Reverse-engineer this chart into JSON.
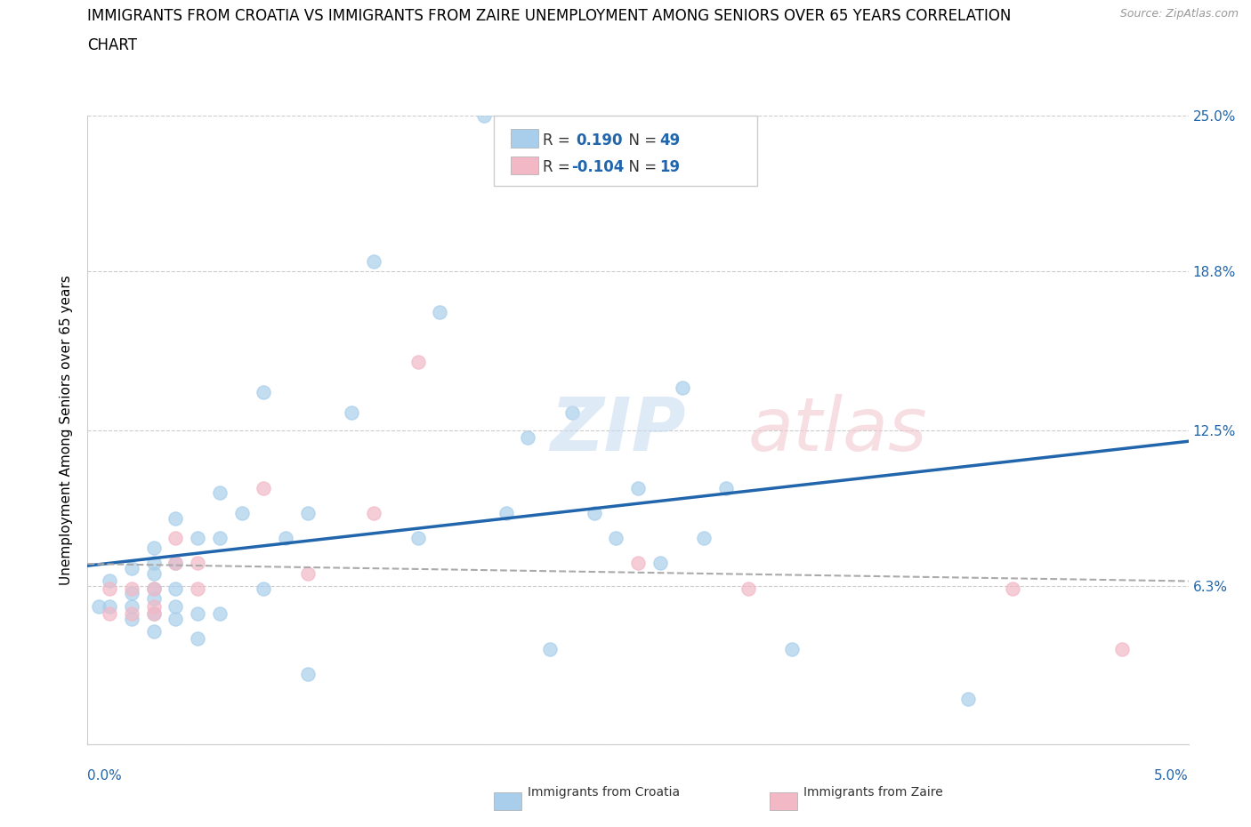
{
  "title_line1": "IMMIGRANTS FROM CROATIA VS IMMIGRANTS FROM ZAIRE UNEMPLOYMENT AMONG SENIORS OVER 65 YEARS CORRELATION",
  "title_line2": "CHART",
  "source": "Source: ZipAtlas.com",
  "ylabel": "Unemployment Among Seniors over 65 years",
  "xlim": [
    0.0,
    0.05
  ],
  "ylim": [
    0.0,
    0.25
  ],
  "xticks": [
    0.0,
    0.01,
    0.02,
    0.03,
    0.04,
    0.05
  ],
  "xticklabels": [
    "0.0%",
    "",
    "",
    "",
    "",
    "5.0%"
  ],
  "yticks": [
    0.0,
    0.063,
    0.125,
    0.188,
    0.25
  ],
  "yticklabels": [
    "",
    "6.3%",
    "12.5%",
    "18.8%",
    "25.0%"
  ],
  "croatia_color": "#A8CEEB",
  "zaire_color": "#F2B8C6",
  "croatia_line_color": "#2166AC",
  "zaire_line_color": "#F08098",
  "background_color": "#FFFFFF",
  "grid_color": "#CCCCCC",
  "r_croatia": 0.19,
  "n_croatia": 49,
  "r_zaire": -0.104,
  "n_zaire": 19,
  "croatia_x": [
    0.0005,
    0.001,
    0.001,
    0.002,
    0.002,
    0.002,
    0.002,
    0.003,
    0.003,
    0.003,
    0.003,
    0.003,
    0.003,
    0.003,
    0.004,
    0.004,
    0.004,
    0.004,
    0.004,
    0.005,
    0.005,
    0.005,
    0.006,
    0.006,
    0.006,
    0.007,
    0.008,
    0.008,
    0.009,
    0.01,
    0.01,
    0.012,
    0.013,
    0.015,
    0.016,
    0.018,
    0.019,
    0.02,
    0.021,
    0.022,
    0.023,
    0.024,
    0.025,
    0.026,
    0.027,
    0.028,
    0.029,
    0.032,
    0.04
  ],
  "croatia_y": [
    0.055,
    0.055,
    0.065,
    0.05,
    0.055,
    0.06,
    0.07,
    0.045,
    0.052,
    0.058,
    0.062,
    0.068,
    0.072,
    0.078,
    0.05,
    0.055,
    0.062,
    0.072,
    0.09,
    0.042,
    0.052,
    0.082,
    0.052,
    0.082,
    0.1,
    0.092,
    0.062,
    0.14,
    0.082,
    0.028,
    0.092,
    0.132,
    0.192,
    0.082,
    0.172,
    0.25,
    0.092,
    0.122,
    0.038,
    0.132,
    0.092,
    0.082,
    0.102,
    0.072,
    0.142,
    0.082,
    0.102,
    0.038,
    0.018
  ],
  "zaire_x": [
    0.001,
    0.001,
    0.002,
    0.002,
    0.003,
    0.003,
    0.003,
    0.004,
    0.004,
    0.005,
    0.005,
    0.008,
    0.01,
    0.013,
    0.015,
    0.025,
    0.03,
    0.042,
    0.047
  ],
  "zaire_y": [
    0.052,
    0.062,
    0.052,
    0.062,
    0.052,
    0.055,
    0.062,
    0.072,
    0.082,
    0.062,
    0.072,
    0.102,
    0.068,
    0.092,
    0.152,
    0.072,
    0.062,
    0.062,
    0.038
  ],
  "title_fontsize": 12,
  "axis_label_fontsize": 11,
  "tick_fontsize": 11,
  "legend_fontsize": 12
}
